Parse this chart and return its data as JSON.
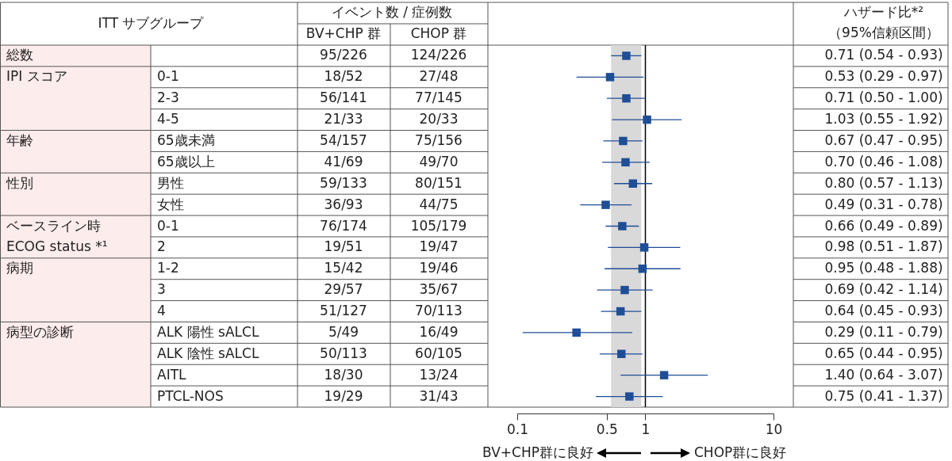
{
  "chart_data": [
    {
      "type": "other",
      "annotations": [
        "ITT サブグループ",
        "イベント数 / 症例数",
        "BV+CHP 群",
        "CHOP 群",
        "総数",
        "95/226",
        "124/226",
        "IPI スコア",
        "0-1",
        "18/52",
        "27/48",
        "2-3",
        "56/141",
        "77/145",
        "4-5",
        "21/33",
        "20/33",
        "年齢",
        "65歳未満",
        "54/157",
        "75/156",
        "65歳以上",
        "41/69",
        "49/70",
        "性別",
        "男性",
        "59/133",
        "80/151",
        "女性",
        "36/93",
        "44/75",
        "ベースライン時",
        "0-1",
        "76/174",
        "105/179",
        "ECOG status *¹",
        "2",
        "19/51",
        "19/47",
        "病期",
        "1-2",
        "15/42",
        "19/46",
        "3",
        "29/57",
        "35/67",
        "4",
        "51/127",
        "70/113",
        "病型の診断",
        "ALK 陽性 sALCL",
        "5/49",
        "16/49",
        "ALK 陰性 sALCL",
        "50/113",
        "60/105",
        "AITL",
        "18/30",
        "13/24",
        "PTCL-NOS",
        "19/29",
        "31/43"
      ]
    },
    {
      "type": "scatter",
      "orientation": "horizontal",
      "categories": [
        null,
        null,
        null,
        null,
        null,
        null,
        null,
        null,
        null,
        null,
        null,
        null,
        null,
        null,
        null,
        null,
        null
      ],
      "values": [
        0.71,
        0.53,
        0.71,
        1.03,
        0.67,
        0.7,
        0.8,
        0.49,
        0.66,
        0.98,
        0.95,
        0.69,
        0.64,
        0.29,
        0.65,
        1.4,
        0.75
      ],
      "errors": [
        [
          0.54,
          0.93
        ],
        [
          0.29,
          0.97
        ],
        [
          0.5,
          1.0
        ],
        [
          0.55,
          1.92
        ],
        [
          0.47,
          0.95
        ],
        [
          0.46,
          1.08
        ],
        [
          0.57,
          1.13
        ],
        [
          0.31,
          0.78
        ],
        [
          0.49,
          0.89
        ],
        [
          0.51,
          1.87
        ],
        [
          0.48,
          1.88
        ],
        [
          0.42,
          1.14
        ],
        [
          0.45,
          0.93
        ],
        [
          0.11,
          0.79
        ],
        [
          0.44,
          0.95
        ],
        [
          0.64,
          3.07
        ],
        [
          0.41,
          1.37
        ]
      ],
      "value_labels": [
        "0.71 (0.54 - 0.93)",
        "0.53 (0.29 - 0.97)",
        "0.71 (0.50 - 1.00)",
        "1.03 (0.55 - 1.92)",
        "0.67 (0.47 - 0.95)",
        "0.70 (0.46 - 1.08)",
        "0.80 (0.57 - 1.13)",
        "0.49 (0.31 - 0.78)",
        "0.66 (0.49 - 0.89)",
        "0.98 (0.51 - 1.87)",
        "0.95 (0.48 - 1.88)",
        "0.69 (0.42 - 1.14)",
        "0.64 (0.45 - 0.93)",
        "0.29 (0.11 - 0.79)",
        "0.65 (0.44 - 0.95)",
        "1.40 (0.64 - 3.07)",
        "0.75 (0.41 - 1.37)"
      ],
      "color": "#1f4e96",
      "marker": "square",
      "log": "x",
      "xlim": [
        0.1,
        10
      ],
      "xticks": [
        0.1,
        0.5,
        1,
        10
      ],
      "tick_labels": "x",
      "ref_lines": [
        {
          "axis": "x",
          "value": 1,
          "color": "#000000"
        }
      ],
      "bands": [
        {
          "axis": "x",
          "from": 0.54,
          "to": 0.93,
          "color": "#d9d9d9"
        }
      ],
      "annotations": [
        "ハザード比*²",
        "（95%信頼区間）",
        "BV+CHP群に良好",
        "CHOP群に良好"
      ]
    }
  ]
}
